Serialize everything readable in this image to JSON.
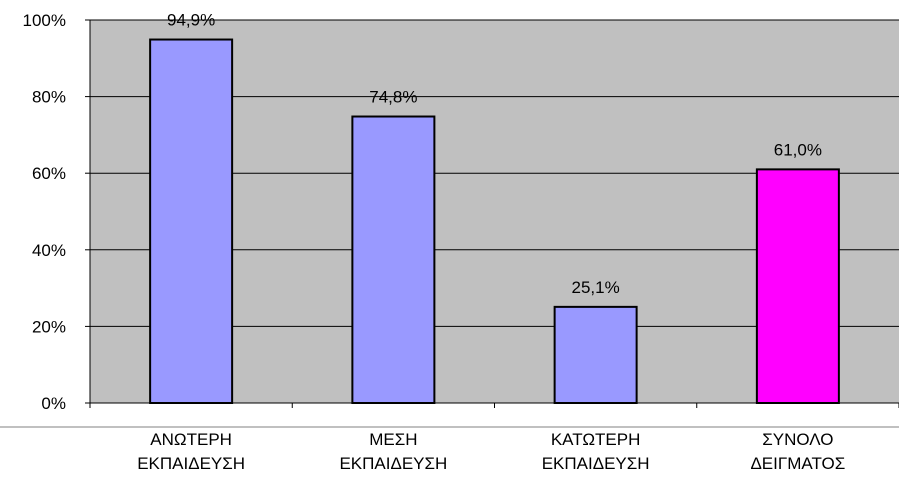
{
  "chart_data": {
    "type": "bar",
    "categories": [
      [
        "ΑΝΩΤΕΡΗ",
        "ΕΚΠΑΙΔΕΥΣΗ"
      ],
      [
        "ΜΕΣΗ",
        "ΕΚΠΑΙΔΕΥΣΗ"
      ],
      [
        "ΚΑΤΩΤΕΡΗ",
        "ΕΚΠΑΙΔΕΥΣΗ"
      ],
      [
        "ΣΥΝΟΛΟ",
        "ΔΕΙΓΜΑΤΟΣ"
      ]
    ],
    "values": [
      94.9,
      74.8,
      25.1,
      61.0
    ],
    "data_labels": [
      "94,9%",
      "74,8%",
      "25,1%",
      "61,0%"
    ],
    "bar_colors": [
      "#9999ff",
      "#9999ff",
      "#9999ff",
      "#ff00ff"
    ],
    "ylim": [
      0,
      100
    ],
    "yticks": [
      0,
      20,
      40,
      60,
      80,
      100
    ],
    "ytick_labels": [
      "0%",
      "20%",
      "40%",
      "60%",
      "80%",
      "100%"
    ],
    "plot_background": "#c0c0c0",
    "grid": true,
    "xlabel": "",
    "ylabel": ""
  }
}
